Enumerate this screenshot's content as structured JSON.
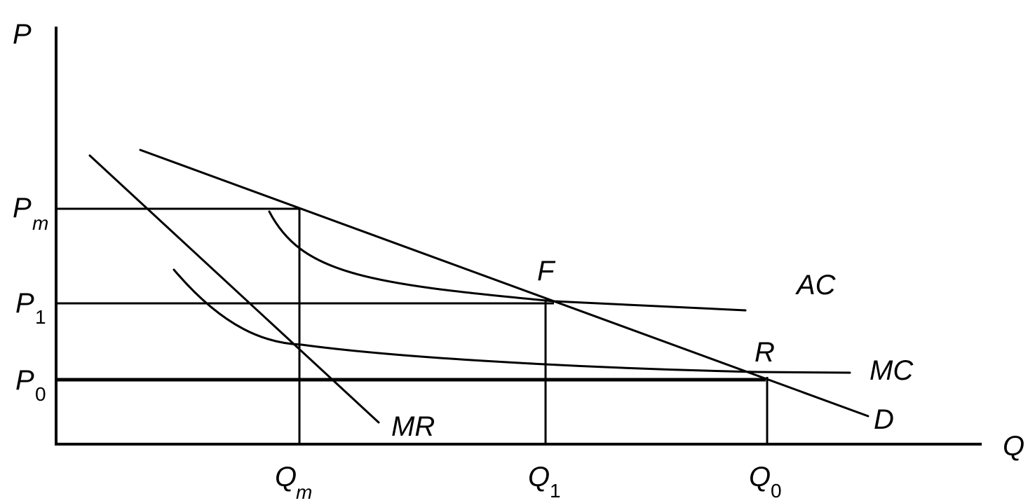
{
  "axes": {
    "y_label": "P",
    "x_label": "Q"
  },
  "y_ticks": {
    "pm": {
      "main": "P",
      "sub": "m"
    },
    "p1": {
      "main": "P",
      "sub": "1"
    },
    "p0": {
      "main": "P",
      "sub": "0"
    }
  },
  "x_ticks": {
    "qm": {
      "main": "Q",
      "sub": "m"
    },
    "q1": {
      "main": "Q",
      "sub": "1"
    },
    "q0": {
      "main": "Q",
      "sub": "0"
    }
  },
  "curves": {
    "demand": "D",
    "marginal_revenue": "MR",
    "average_cost": "AC",
    "marginal_cost": "MC"
  },
  "points": {
    "f": "F",
    "r": "R"
  }
}
